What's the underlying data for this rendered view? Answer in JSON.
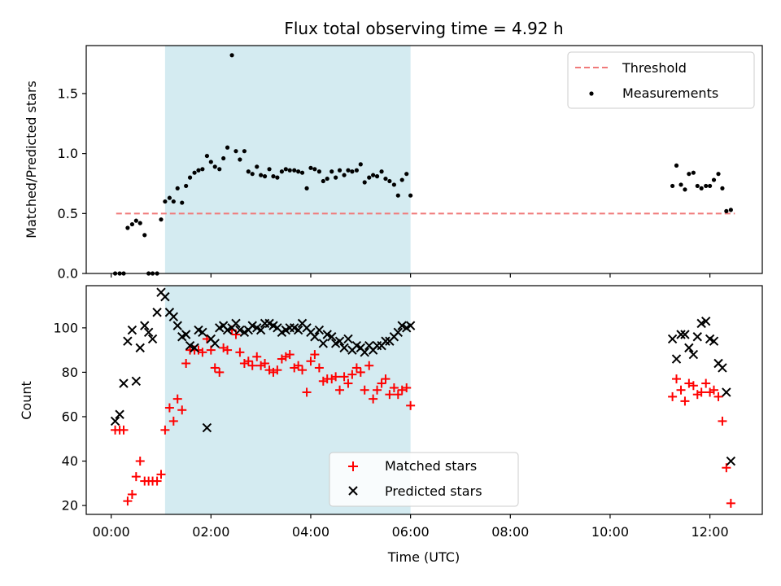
{
  "chart_data": [
    {
      "type": "scatter",
      "title": "Flux total observing time = 4.92 h",
      "xlabel": "",
      "ylabel": "Matched/Predicted stars",
      "ylim": [
        0,
        1.9
      ],
      "xlim": [
        -0.5,
        13.05
      ],
      "yticks": [
        0.0,
        0.5,
        1.0,
        1.5
      ],
      "ytick_labels": [
        "0.0",
        "0.5",
        "1.0",
        "1.5"
      ],
      "shaded_interval": [
        1.08,
        6.0
      ],
      "shade_color": "#d4ebf1",
      "legend": {
        "placement": "top-right",
        "entries": [
          "Threshold",
          "Measurements"
        ]
      },
      "threshold": {
        "name": "Threshold",
        "value": 0.5,
        "x_range": [
          0.1,
          12.5
        ],
        "color": "#f07a7a"
      },
      "series": [
        {
          "name": "Measurements",
          "color": "#000000",
          "x": [
            0.08,
            0.17,
            0.25,
            0.33,
            0.42,
            0.5,
            0.58,
            0.67,
            0.75,
            0.83,
            0.92,
            1.0,
            1.08,
            1.17,
            1.25,
            1.33,
            1.42,
            1.5,
            1.58,
            1.67,
            1.75,
            1.83,
            1.92,
            2.0,
            2.08,
            2.17,
            2.25,
            2.33,
            2.42,
            2.5,
            2.58,
            2.67,
            2.75,
            2.83,
            2.92,
            3.0,
            3.08,
            3.17,
            3.25,
            3.33,
            3.42,
            3.5,
            3.58,
            3.67,
            3.75,
            3.83,
            3.92,
            4.0,
            4.08,
            4.17,
            4.25,
            4.33,
            4.42,
            4.5,
            4.58,
            4.67,
            4.75,
            4.83,
            4.92,
            5.0,
            5.08,
            5.17,
            5.25,
            5.33,
            5.42,
            5.5,
            5.58,
            5.67,
            5.75,
            5.83,
            5.92,
            6.0,
            11.25,
            11.33,
            11.42,
            11.5,
            11.58,
            11.67,
            11.75,
            11.83,
            11.92,
            12.0,
            12.08,
            12.17,
            12.25,
            12.33,
            12.42
          ],
          "y": [
            0.0,
            0.0,
            0.0,
            0.38,
            0.41,
            0.44,
            0.42,
            0.32,
            0.0,
            0.0,
            0.0,
            0.45,
            0.6,
            0.63,
            0.6,
            0.71,
            0.59,
            0.73,
            0.8,
            0.84,
            0.86,
            0.87,
            0.98,
            0.93,
            0.89,
            0.87,
            0.96,
            1.05,
            1.82,
            1.02,
            0.95,
            1.02,
            0.85,
            0.83,
            0.89,
            0.82,
            0.81,
            0.87,
            0.81,
            0.8,
            0.85,
            0.87,
            0.86,
            0.86,
            0.85,
            0.84,
            0.71,
            0.88,
            0.87,
            0.85,
            0.77,
            0.79,
            0.85,
            0.8,
            0.86,
            0.82,
            0.86,
            0.85,
            0.86,
            0.91,
            0.76,
            0.8,
            0.82,
            0.81,
            0.85,
            0.79,
            0.77,
            0.74,
            0.65,
            0.78,
            0.83,
            0.65,
            0.73,
            0.9,
            0.74,
            0.7,
            0.83,
            0.84,
            0.73,
            0.71,
            0.73,
            0.73,
            0.78,
            0.83,
            0.71,
            0.52,
            0.53
          ]
        }
      ]
    },
    {
      "type": "scatter",
      "title": "",
      "xlabel": "Time (UTC)",
      "ylabel": "Count",
      "ylim": [
        16,
        119
      ],
      "xlim": [
        -0.5,
        13.05
      ],
      "yticks": [
        20,
        40,
        60,
        80,
        100
      ],
      "ytick_labels": [
        "20",
        "40",
        "60",
        "80",
        "100"
      ],
      "xticks": [
        0,
        2,
        4,
        6,
        8,
        10,
        12
      ],
      "xtick_labels": [
        "00:00",
        "02:00",
        "04:00",
        "06:00",
        "08:00",
        "10:00",
        "12:00"
      ],
      "shaded_interval": [
        1.08,
        6.0
      ],
      "shade_color": "#d4ebf1",
      "legend": {
        "placement": "lower-center",
        "entries": [
          "Matched stars",
          "Predicted stars"
        ]
      },
      "series": [
        {
          "name": "Matched stars",
          "marker": "plus",
          "color": "#ff0000",
          "x": [
            0.08,
            0.17,
            0.25,
            0.33,
            0.42,
            0.5,
            0.58,
            0.67,
            0.75,
            0.83,
            0.92,
            1.0,
            1.08,
            1.17,
            1.25,
            1.33,
            1.42,
            1.5,
            1.58,
            1.67,
            1.75,
            1.83,
            1.92,
            2.0,
            2.08,
            2.17,
            2.25,
            2.33,
            2.42,
            2.5,
            2.58,
            2.67,
            2.75,
            2.83,
            2.92,
            3.0,
            3.08,
            3.17,
            3.25,
            3.33,
            3.42,
            3.5,
            3.58,
            3.67,
            3.75,
            3.83,
            3.92,
            4.0,
            4.08,
            4.17,
            4.25,
            4.33,
            4.42,
            4.5,
            4.58,
            4.67,
            4.75,
            4.83,
            4.92,
            5.0,
            5.08,
            5.17,
            5.25,
            5.33,
            5.42,
            5.5,
            5.58,
            5.67,
            5.75,
            5.83,
            5.92,
            6.0,
            11.25,
            11.33,
            11.42,
            11.5,
            11.58,
            11.67,
            11.75,
            11.83,
            11.92,
            12.0,
            12.08,
            12.17,
            12.25,
            12.33,
            12.42
          ],
          "y": [
            54,
            54,
            54,
            22,
            25,
            33,
            40,
            31,
            31,
            31,
            31,
            34,
            54,
            64,
            58,
            68,
            63,
            84,
            90,
            90,
            90,
            89,
            95,
            90,
            82,
            80,
            91,
            90,
            99,
            97,
            89,
            84,
            85,
            83,
            87,
            83,
            84,
            81,
            80,
            81,
            86,
            87,
            88,
            82,
            83,
            81,
            71,
            85,
            88,
            82,
            76,
            77,
            77,
            78,
            72,
            78,
            75,
            79,
            82,
            80,
            72,
            83,
            68,
            72,
            75,
            77,
            70,
            73,
            70,
            72,
            73,
            65,
            69,
            77,
            72,
            67,
            75,
            74,
            70,
            71,
            75,
            71,
            72,
            69,
            58,
            37,
            21
          ]
        },
        {
          "name": "Predicted stars",
          "marker": "x",
          "color": "#000000",
          "x": [
            0.08,
            0.17,
            0.25,
            0.33,
            0.42,
            0.5,
            0.58,
            0.67,
            0.75,
            0.83,
            0.92,
            1.0,
            1.08,
            1.17,
            1.25,
            1.33,
            1.42,
            1.5,
            1.58,
            1.67,
            1.75,
            1.83,
            1.92,
            2.0,
            2.08,
            2.17,
            2.25,
            2.33,
            2.42,
            2.5,
            2.58,
            2.67,
            2.75,
            2.83,
            2.92,
            3.0,
            3.08,
            3.17,
            3.25,
            3.33,
            3.42,
            3.5,
            3.58,
            3.67,
            3.75,
            3.83,
            3.92,
            4.0,
            4.08,
            4.17,
            4.25,
            4.33,
            4.42,
            4.5,
            4.58,
            4.67,
            4.75,
            4.83,
            4.92,
            5.0,
            5.08,
            5.17,
            5.25,
            5.33,
            5.42,
            5.5,
            5.58,
            5.67,
            5.75,
            5.83,
            5.92,
            6.0,
            11.25,
            11.33,
            11.42,
            11.5,
            11.58,
            11.67,
            11.75,
            11.83,
            11.92,
            12.0,
            12.08,
            12.17,
            12.25,
            12.33,
            12.42
          ],
          "y": [
            58,
            61,
            75,
            94,
            99,
            76,
            91,
            101,
            98,
            95,
            107,
            116,
            114,
            107,
            105,
            101,
            96,
            97,
            92,
            91,
            99,
            98,
            55,
            95,
            93,
            100,
            101,
            99,
            100,
            102,
            99,
            98,
            99,
            101,
            100,
            99,
            102,
            102,
            101,
            100,
            98,
            99,
            100,
            100,
            99,
            102,
            100,
            98,
            96,
            99,
            93,
            97,
            96,
            93,
            94,
            91,
            95,
            90,
            92,
            91,
            89,
            92,
            90,
            92,
            92,
            94,
            94,
            96,
            98,
            101,
            100,
            101,
            95,
            86,
            97,
            97,
            91,
            88,
            96,
            102,
            103,
            95,
            94,
            84,
            82,
            71,
            40
          ]
        }
      ]
    }
  ]
}
